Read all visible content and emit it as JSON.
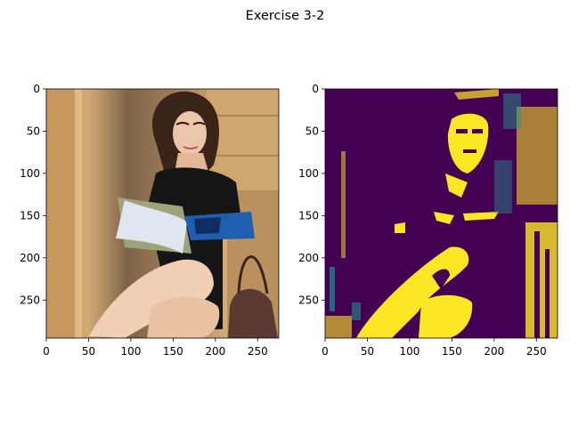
{
  "figure": {
    "suptitle": "Exercise 3-2"
  },
  "chart_data": [
    {
      "type": "heatmap",
      "subtype": "image",
      "title": "",
      "xlabel": "",
      "ylabel": "",
      "xlim": [
        0,
        275
      ],
      "ylim": [
        295,
        0
      ],
      "xticks": [
        0,
        50,
        100,
        150,
        200,
        250
      ],
      "yticks": [
        0,
        50,
        100,
        150,
        200,
        250
      ],
      "content": "color photograph of a woman seated holding an open book and a blue magazine, warm tan wall background",
      "colors": {
        "wall": "#c9a06a",
        "wall_dark": "#8a6a45",
        "hair": "#3a2418",
        "dress": "#151515",
        "skin": "#e8c2a8",
        "page": "#dfe6f0",
        "magazine": "#1f5fb0",
        "bag": "#5a3a30"
      }
    },
    {
      "type": "heatmap",
      "subtype": "binary-mask",
      "title": "",
      "xlabel": "",
      "ylabel": "",
      "xlim": [
        0,
        275
      ],
      "ylim": [
        295,
        0
      ],
      "xticks": [
        0,
        50,
        100,
        150,
        200,
        250
      ],
      "yticks": [
        0,
        50,
        100,
        150,
        200,
        250
      ],
      "colormap": "viridis",
      "values": [
        0,
        1
      ],
      "colors": {
        "low": "#440154",
        "high": "#fde725",
        "mid": "#21918c"
      }
    }
  ]
}
